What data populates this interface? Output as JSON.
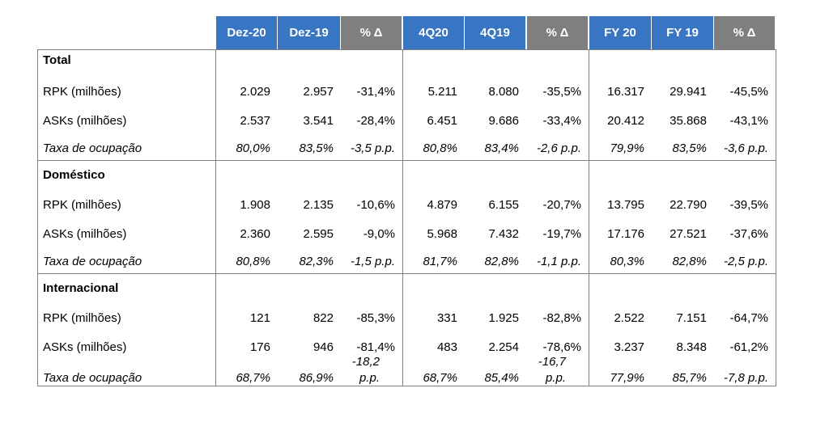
{
  "headers": [
    "Dez-20",
    "Dez-19",
    "% Δ",
    "4Q20",
    "4Q19",
    "% Δ",
    "FY 20",
    "FY 19",
    "% Δ"
  ],
  "sections": [
    {
      "title": "Total",
      "rows": [
        {
          "label": "RPK (milhões)",
          "values": [
            "2.029",
            "2.957",
            "-31,4%",
            "5.211",
            "8.080",
            "-35,5%",
            "16.317",
            "29.941",
            "-45,5%"
          ]
        },
        {
          "label": "ASKs (milhões)",
          "values": [
            "2.537",
            "3.541",
            "-28,4%",
            "6.451",
            "9.686",
            "-33,4%",
            "20.412",
            "35.868",
            "-43,1%"
          ]
        },
        {
          "label": "Taxa de ocupação",
          "values": [
            "80,0%",
            "83,5%",
            "-3,5 p.p.",
            "80,8%",
            "83,4%",
            "-2,6 p.p.",
            "79,9%",
            "83,5%",
            "-3,6 p.p."
          ]
        }
      ]
    },
    {
      "title": "Doméstico",
      "rows": [
        {
          "label": "RPK (milhões)",
          "values": [
            "1.908",
            "2.135",
            "-10,6%",
            "4.879",
            "6.155",
            "-20,7%",
            "13.795",
            "22.790",
            "-39,5%"
          ]
        },
        {
          "label": "ASKs (milhões)",
          "values": [
            "2.360",
            "2.595",
            "-9,0%",
            "5.968",
            "7.432",
            "-19,7%",
            "17.176",
            "27.521",
            "-37,6%"
          ]
        },
        {
          "label": "Taxa de ocupação",
          "values": [
            "80,8%",
            "82,3%",
            "-1,5 p.p.",
            "81,7%",
            "82,8%",
            "-1,1 p.p.",
            "80,3%",
            "82,8%",
            "-2,5 p.p."
          ]
        }
      ]
    },
    {
      "title": "Internacional",
      "rows": [
        {
          "label": "RPK (milhões)",
          "values": [
            "121",
            "822",
            "-85,3%",
            "331",
            "1.925",
            "-82,8%",
            "2.522",
            "7.151",
            "-64,7%"
          ]
        },
        {
          "label": "ASKs (milhões)",
          "values": [
            "176",
            "946",
            "-81,4%",
            "483",
            "2.254",
            "-78,6%",
            "3.237",
            "8.348",
            "-61,2%"
          ]
        },
        {
          "label": "Taxa de ocupação",
          "values": [
            "68,7%",
            "86,9%",
            "-18,2 p.p.",
            "68,7%",
            "85,4%",
            "-16,7 p.p.",
            "77,9%",
            "85,7%",
            "-7,8 p.p."
          ]
        }
      ]
    }
  ],
  "wrapped": {
    "int_d1_line1": "-18,2",
    "int_d1_line2": "p.p.",
    "int_d2_line1": "-16,7",
    "int_d2_line2": "p.p."
  },
  "colors": {
    "header_blue": "#3876c4",
    "header_grey": "#7f7f7f",
    "border": "#808080"
  }
}
